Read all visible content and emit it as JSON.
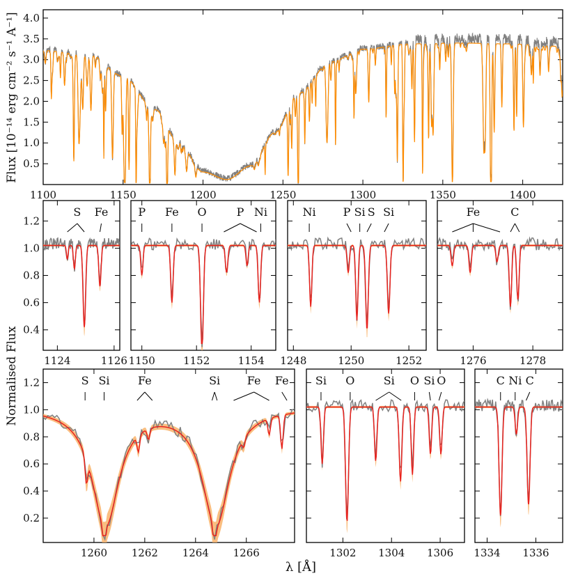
{
  "chart_data": {
    "type": "line",
    "colors": {
      "observed": "#808080",
      "model": "#ff8c00",
      "model_band": "#f9b36a",
      "fit": "#e8231e",
      "axis": "#000000"
    },
    "xlabel": "λ [Å]",
    "ylabel_norm": "Normalised Flux",
    "top": {
      "ylabel": "Flux [10⁻¹⁴ erg cm⁻² s⁻¹ A⁻¹]",
      "xlim": [
        1100,
        1425
      ],
      "ylim": [
        0,
        4.2
      ],
      "xticks": [
        1100,
        1150,
        1200,
        1250,
        1300,
        1350,
        1400
      ],
      "yticks": [
        0.5,
        1.0,
        1.5,
        2.0,
        2.5,
        3.0,
        3.5,
        4.0
      ],
      "xtick_labels": [
        "1100",
        "1150",
        "1200",
        "1250",
        "1300",
        "1350",
        "1400"
      ],
      "ytick_labels": [
        "0.5",
        "1.0",
        "1.5",
        "2.0",
        "2.5",
        "3.0",
        "3.5",
        "4.0"
      ],
      "continuum_points": [
        [
          1100,
          3.22
        ],
        [
          1130,
          3.1
        ],
        [
          1150,
          2.6
        ],
        [
          1170,
          1.8
        ],
        [
          1185,
          1.0
        ],
        [
          1200,
          0.3
        ],
        [
          1215,
          0.12
        ],
        [
          1230,
          0.45
        ],
        [
          1245,
          1.25
        ],
        [
          1260,
          2.2
        ],
        [
          1280,
          2.95
        ],
        [
          1300,
          3.25
        ],
        [
          1330,
          3.38
        ],
        [
          1360,
          3.4
        ],
        [
          1390,
          3.38
        ],
        [
          1425,
          3.32
        ]
      ]
    },
    "middle": {
      "ylim": [
        0.25,
        1.35
      ],
      "yticks": [
        0.4,
        0.6,
        0.8,
        1.0,
        1.2
      ],
      "ytick_labels": [
        "0.4",
        "0.6",
        "0.8",
        "1.0",
        "1.2"
      ],
      "panels": [
        {
          "xlim": [
            1123.5,
            1126.2
          ],
          "xticks": [
            1124,
            1126
          ],
          "xtick_labels": [
            "1124",
            "1126"
          ],
          "lines": [
            [
              1124.35,
              0.1,
              0.03
            ],
            [
              1124.6,
              0.17,
              0.035
            ],
            [
              1124.95,
              0.6,
              0.045
            ],
            [
              1125.5,
              0.3,
              0.04
            ]
          ],
          "labels": [
            {
              "text": "S",
              "x": 1124.7,
              "targets": [
                1124.35,
                1124.95
              ]
            },
            {
              "text": "Fe",
              "x": 1125.55,
              "targets": [
                1125.5
              ]
            }
          ]
        },
        {
          "xlim": [
            1149.6,
            1154.9
          ],
          "xticks": [
            1150,
            1152,
            1154
          ],
          "xtick_labels": [
            "1150",
            "1152",
            "1154"
          ],
          "lines": [
            [
              1150.0,
              0.22,
              0.04
            ],
            [
              1151.1,
              0.42,
              0.045
            ],
            [
              1152.2,
              0.8,
              0.05
            ],
            [
              1153.1,
              0.2,
              0.045
            ],
            [
              1153.85,
              0.15,
              0.04
            ],
            [
              1154.3,
              0.42,
              0.045
            ]
          ],
          "labels": [
            {
              "text": "P",
              "x": 1150.0,
              "targets": [
                1150.0
              ]
            },
            {
              "text": "Fe",
              "x": 1151.1,
              "targets": [
                1151.1
              ]
            },
            {
              "text": "O",
              "x": 1152.2,
              "targets": [
                1152.2
              ]
            },
            {
              "text": "P",
              "x": 1153.6,
              "targets": [
                1153.0,
                1154.2
              ]
            },
            {
              "text": "Ni",
              "x": 1154.35,
              "targets": [
                1154.35
              ]
            }
          ]
        },
        {
          "xlim": [
            1247.8,
            1252.6
          ],
          "xticks": [
            1248,
            1250,
            1252
          ],
          "xtick_labels": [
            "1248",
            "1250",
            "1252"
          ],
          "lines": [
            [
              1248.6,
              0.45,
              0.04
            ],
            [
              1249.9,
              0.2,
              0.04
            ],
            [
              1250.2,
              0.55,
              0.04
            ],
            [
              1250.55,
              0.62,
              0.045
            ],
            [
              1251.3,
              0.5,
              0.045
            ]
          ],
          "labels": [
            {
              "text": "Ni",
              "x": 1248.55,
              "targets": [
                1248.55
              ]
            },
            {
              "text": "P",
              "x": 1249.85,
              "targets": [
                1250.0
              ]
            },
            {
              "text": "Si",
              "x": 1250.3,
              "targets": [
                1250.3
              ]
            },
            {
              "text": "S",
              "x": 1250.7,
              "targets": [
                1250.55
              ]
            },
            {
              "text": "Si",
              "x": 1251.3,
              "targets": [
                1251.15
              ]
            }
          ]
        },
        {
          "xlim": [
            1274.8,
            1279.0
          ],
          "xticks": [
            1276,
            1278
          ],
          "xtick_labels": [
            "1276",
            "1278"
          ],
          "lines": [
            [
              1275.3,
              0.15,
              0.04
            ],
            [
              1275.9,
              0.2,
              0.04
            ],
            [
              1276.8,
              0.12,
              0.04
            ],
            [
              1277.25,
              0.45,
              0.04
            ],
            [
              1277.5,
              0.4,
              0.04
            ]
          ],
          "labels": [
            {
              "text": "Fe",
              "x": 1276.0,
              "targets": [
                1275.3,
                1276.0,
                1276.9
              ]
            },
            {
              "text": "C",
              "x": 1277.4,
              "targets": [
                1277.25,
                1277.55
              ]
            }
          ]
        }
      ]
    },
    "bottom": {
      "ylim": [
        0.02,
        1.3
      ],
      "yticks": [
        0.2,
        0.4,
        0.6,
        0.8,
        1.0,
        1.2
      ],
      "ytick_labels": [
        "0.2",
        "0.4",
        "0.6",
        "0.8",
        "1.0",
        "1.2"
      ],
      "panels": [
        {
          "xlim": [
            1258.0,
            1267.9
          ],
          "xticks": [
            1260,
            1262,
            1264,
            1266
          ],
          "xtick_labels": [
            "1260",
            "1262",
            "1264",
            "1266"
          ],
          "broad": [
            [
              1260.45,
              0.9,
              0.65
            ],
            [
              1264.8,
              0.9,
              0.65
            ]
          ],
          "lines": [
            [
              1259.7,
              0.18,
              0.05
            ],
            [
              1260.4,
              0.2,
              0.05
            ],
            [
              1261.75,
              0.12,
              0.05
            ],
            [
              1262.15,
              0.08,
              0.05
            ],
            [
              1264.75,
              0.2,
              0.05
            ],
            [
              1265.9,
              0.06,
              0.05
            ],
            [
              1266.9,
              0.12,
              0.05
            ],
            [
              1267.4,
              0.25,
              0.05
            ]
          ],
          "labels": [
            {
              "text": "S",
              "x": 1259.65,
              "targets": [
                1259.65
              ]
            },
            {
              "text": "Si",
              "x": 1260.4,
              "targets": [
                1260.4
              ]
            },
            {
              "text": "Fe",
              "x": 1262.0,
              "targets": [
                1261.7,
                1262.3
              ]
            },
            {
              "text": "Si",
              "x": 1264.75,
              "targets": [
                1264.65,
                1264.85
              ]
            },
            {
              "text": "Fe",
              "x": 1266.3,
              "targets": [
                1265.5,
                1266.9
              ]
            },
            {
              "text": "Fe",
              "x": 1267.4,
              "targets": [
                1267.6
              ]
            }
          ]
        },
        {
          "xlim": [
            1300.5,
            1307.0
          ],
          "xticks": [
            1302,
            1304,
            1306
          ],
          "xtick_labels": [
            "1302",
            "1304",
            "1306"
          ],
          "lines": [
            [
              1301.15,
              0.42,
              0.05
            ],
            [
              1302.17,
              0.85,
              0.06
            ],
            [
              1303.35,
              0.4,
              0.05
            ],
            [
              1304.37,
              0.55,
              0.055
            ],
            [
              1304.86,
              0.5,
              0.05
            ],
            [
              1305.6,
              0.35,
              0.05
            ],
            [
              1306.03,
              0.35,
              0.05
            ]
          ],
          "labels": [
            {
              "text": "Si",
              "x": 1301.1,
              "targets": [
                1301.1
              ]
            },
            {
              "text": "O",
              "x": 1302.3,
              "targets": [
                1302.3
              ]
            },
            {
              "text": "Si",
              "x": 1303.9,
              "targets": [
                1303.35,
                1304.4
              ]
            },
            {
              "text": "O",
              "x": 1304.95,
              "targets": [
                1304.95
              ]
            },
            {
              "text": "Si",
              "x": 1305.55,
              "targets": [
                1305.6
              ]
            },
            {
              "text": "O",
              "x": 1306.05,
              "targets": [
                1305.95
              ]
            }
          ]
        },
        {
          "xlim": [
            1333.5,
            1337.1
          ],
          "xticks": [
            1334,
            1336
          ],
          "xtick_labels": [
            "1334",
            "1336"
          ],
          "lines": [
            [
              1334.55,
              0.8,
              0.06
            ],
            [
              1335.2,
              0.2,
              0.05
            ],
            [
              1335.7,
              0.72,
              0.06
            ]
          ],
          "labels": [
            {
              "text": "C",
              "x": 1334.55,
              "targets": [
                1334.55
              ]
            },
            {
              "text": "Ni",
              "x": 1335.15,
              "targets": [
                1335.15
              ]
            },
            {
              "text": "C",
              "x": 1335.75,
              "targets": [
                1335.6
              ]
            }
          ]
        }
      ]
    }
  }
}
